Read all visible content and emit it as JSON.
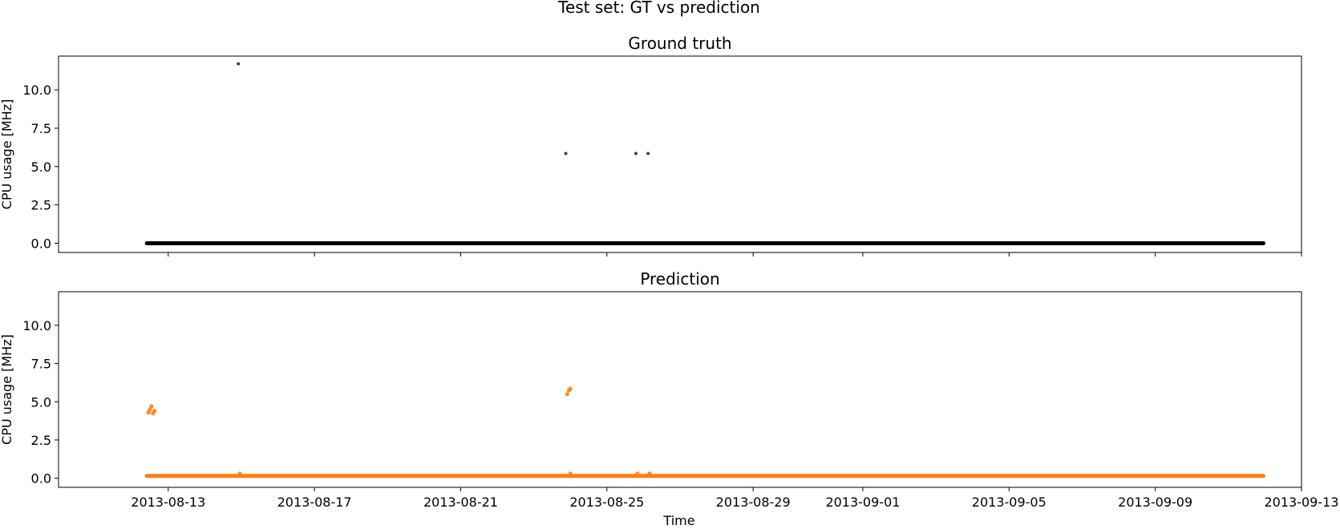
{
  "figure": {
    "suptitle": "Test set: GT vs prediction",
    "xlabel": "Time"
  },
  "chart_data": [
    {
      "type": "scatter",
      "title": "Ground truth",
      "xlabel": "",
      "ylabel": "CPU usage [MHz]",
      "xlim": [
        "2013-08-10",
        "2013-09-13"
      ],
      "ylim": [
        -0.6,
        12.2
      ],
      "xticks": [
        "2013-08-13",
        "2013-08-17",
        "2013-08-21",
        "2013-08-25",
        "2013-08-29",
        "2013-09-01",
        "2013-09-05",
        "2013-09-09",
        "2013-09-13"
      ],
      "xtick_labels_shown": false,
      "yticks": [
        0.0,
        2.5,
        5.0,
        7.5,
        10.0
      ],
      "ytick_labels": [
        "0.0",
        "2.5",
        "5.0",
        "7.5",
        "10.0"
      ],
      "grid": false,
      "color": "#000000",
      "baseline": {
        "value": 0.0,
        "x_start": "2013-08-12 10:00",
        "x_end": "2013-09-11 23:00"
      },
      "points": [
        {
          "x": "2013-08-14 22:00",
          "y": 11.7
        },
        {
          "x": "2013-08-23 21:00",
          "y": 5.85
        },
        {
          "x": "2013-08-25 19:00",
          "y": 5.85
        },
        {
          "x": "2013-08-26 03:00",
          "y": 5.85
        }
      ]
    },
    {
      "type": "scatter",
      "title": "Prediction",
      "xlabel": "Time",
      "ylabel": "CPU usage [MHz]",
      "xlim": [
        "2013-08-10",
        "2013-09-13"
      ],
      "ylim": [
        -0.6,
        12.2
      ],
      "xticks": [
        "2013-08-13",
        "2013-08-17",
        "2013-08-21",
        "2013-08-25",
        "2013-08-29",
        "2013-09-01",
        "2013-09-05",
        "2013-09-09",
        "2013-09-13"
      ],
      "xtick_labels": [
        "2013-08-13",
        "2013-08-17",
        "2013-08-21",
        "2013-08-25",
        "2013-08-29",
        "2013-09-01",
        "2013-09-05",
        "2013-09-09",
        "2013-09-13"
      ],
      "yticks": [
        0.0,
        2.5,
        5.0,
        7.5,
        10.0
      ],
      "ytick_labels": [
        "0.0",
        "2.5",
        "5.0",
        "7.5",
        "10.0"
      ],
      "grid": false,
      "color": "#ff7f0e",
      "baseline": {
        "value": 0.15,
        "x_start": "2013-08-12 10:00",
        "x_end": "2013-09-11 23:00"
      },
      "points": [
        {
          "x": "2013-08-12 11:00",
          "y": 4.3
        },
        {
          "x": "2013-08-12 12:00",
          "y": 4.5
        },
        {
          "x": "2013-08-12 13:00",
          "y": 4.7
        },
        {
          "x": "2013-08-12 14:00",
          "y": 4.25
        },
        {
          "x": "2013-08-12 15:00",
          "y": 4.4
        },
        {
          "x": "2013-08-14 23:00",
          "y": 0.3
        },
        {
          "x": "2013-08-23 22:00",
          "y": 5.5
        },
        {
          "x": "2013-08-23 23:00",
          "y": 5.75
        },
        {
          "x": "2013-08-24 00:00",
          "y": 5.85
        },
        {
          "x": "2013-08-24 00:00",
          "y": 0.3
        },
        {
          "x": "2013-08-25 20:00",
          "y": 0.3
        },
        {
          "x": "2013-08-26 04:00",
          "y": 0.3
        }
      ]
    }
  ]
}
